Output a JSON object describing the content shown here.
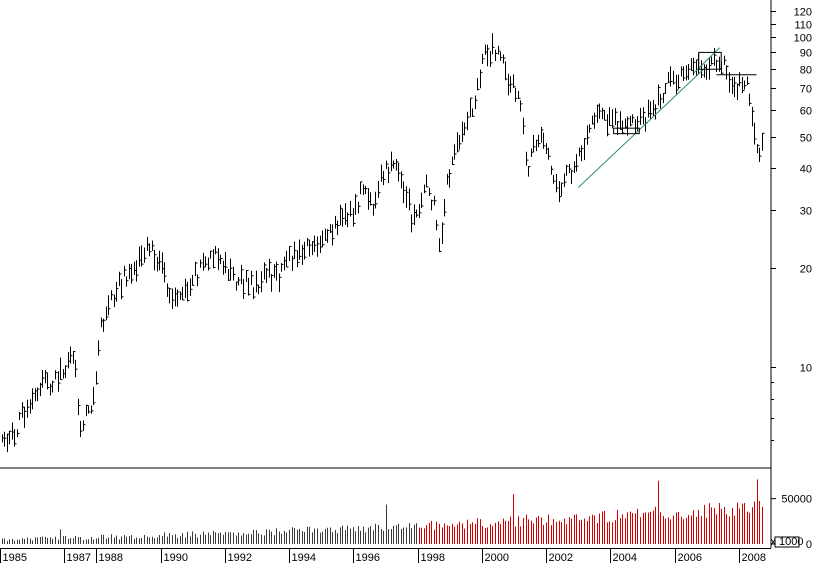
{
  "chart_data": [
    {
      "type": "ohlc",
      "scale": "log",
      "price_axis": {
        "side": "right",
        "ticks": [
          {
            "value": 10,
            "label": "10"
          },
          {
            "value": 20,
            "label": "20"
          },
          {
            "value": 30,
            "label": "30"
          },
          {
            "value": 40,
            "label": "40"
          },
          {
            "value": 50,
            "label": "50"
          },
          {
            "value": 60,
            "label": "60"
          },
          {
            "value": 70,
            "label": "70"
          },
          {
            "value": 80,
            "label": "80"
          },
          {
            "value": 90,
            "label": "90"
          },
          {
            "value": 100,
            "label": "100"
          },
          {
            "value": 110,
            "label": "110"
          },
          {
            "value": 120,
            "label": "120"
          }
        ],
        "range": [
          5,
          128
        ]
      },
      "x_axis": {
        "year_labels": [
          "1985",
          "1987",
          "1988",
          "1990",
          "1992",
          "1994",
          "1996",
          "1998",
          "2000",
          "2002",
          "2004",
          "2006",
          "2008"
        ],
        "range": [
          1985.0,
          2009.0
        ]
      },
      "price_anchors": [
        [
          1985.0,
          6.5
        ],
        [
          1985.4,
          6.0
        ],
        [
          1985.8,
          7.5
        ],
        [
          1986.2,
          8.8
        ],
        [
          1986.6,
          9.0
        ],
        [
          1987.0,
          9.8
        ],
        [
          1987.3,
          11.0
        ],
        [
          1987.5,
          6.5
        ],
        [
          1987.9,
          8.0
        ],
        [
          1988.1,
          13.0
        ],
        [
          1988.5,
          16.0
        ],
        [
          1988.8,
          18.5
        ],
        [
          1989.2,
          20.0
        ],
        [
          1989.6,
          23.0
        ],
        [
          1990.0,
          21.0
        ],
        [
          1990.4,
          15.5
        ],
        [
          1990.8,
          17.5
        ],
        [
          1991.2,
          19.5
        ],
        [
          1991.7,
          22.5
        ],
        [
          1992.1,
          19.5
        ],
        [
          1992.5,
          18.0
        ],
        [
          1992.9,
          17.5
        ],
        [
          1993.3,
          19.5
        ],
        [
          1993.7,
          18.5
        ],
        [
          1994.0,
          21.0
        ],
        [
          1994.4,
          23.0
        ],
        [
          1994.8,
          23.0
        ],
        [
          1995.2,
          25.0
        ],
        [
          1995.6,
          27.5
        ],
        [
          1996.0,
          30.0
        ],
        [
          1996.3,
          35.0
        ],
        [
          1996.6,
          31.0
        ],
        [
          1996.9,
          38.0
        ],
        [
          1997.3,
          42.0
        ],
        [
          1997.6,
          33.0
        ],
        [
          1997.9,
          27.0
        ],
        [
          1998.2,
          36.0
        ],
        [
          1998.5,
          32.0
        ],
        [
          1998.7,
          23.0
        ],
        [
          1998.9,
          35.0
        ],
        [
          1999.2,
          45.0
        ],
        [
          1999.5,
          55.0
        ],
        [
          1999.8,
          65.0
        ],
        [
          2000.0,
          88.0
        ],
        [
          2000.3,
          92.0
        ],
        [
          2000.6,
          85.0
        ],
        [
          2000.9,
          72.0
        ],
        [
          2001.2,
          62.0
        ],
        [
          2001.4,
          40.0
        ],
        [
          2001.6,
          48.0
        ],
        [
          2001.9,
          52.0
        ],
        [
          2002.1,
          42.0
        ],
        [
          2002.4,
          36.0
        ],
        [
          2002.7,
          38.0
        ],
        [
          2003.0,
          44.0
        ],
        [
          2003.3,
          52.0
        ],
        [
          2003.6,
          58.0
        ],
        [
          2003.9,
          56.0
        ],
        [
          2004.2,
          55.0
        ],
        [
          2004.5,
          52.0
        ],
        [
          2004.8,
          56.0
        ],
        [
          2005.1,
          58.0
        ],
        [
          2005.4,
          62.0
        ],
        [
          2005.7,
          70.0
        ],
        [
          2006.0,
          75.0
        ],
        [
          2006.3,
          80.0
        ],
        [
          2006.6,
          78.0
        ],
        [
          2006.9,
          83.0
        ],
        [
          2007.2,
          85.0
        ],
        [
          2007.5,
          82.0
        ],
        [
          2007.7,
          76.0
        ],
        [
          2007.9,
          70.0
        ],
        [
          2008.2,
          73.0
        ],
        [
          2008.4,
          60.0
        ],
        [
          2008.6,
          42.0
        ],
        [
          2008.8,
          48.0
        ],
        [
          2009.0,
          50.0
        ]
      ],
      "volume_panel": {
        "axis_labels": [
          {
            "value": 50000,
            "label": "50000"
          },
          {
            "value": 0,
            "label": "0"
          }
        ],
        "scale_note": "x 1000",
        "range": [
          0,
          75000
        ],
        "colors": {
          "early": "#3a3a3a",
          "late": "#d40000"
        }
      },
      "annotations": {
        "trendline": {
          "from": [
            2003.0,
            35.0
          ],
          "to": [
            2006.9,
            80.0
          ],
          "color": "#2e8b7a"
        },
        "upper_trendline": {
          "from": [
            2006.6,
            78.0
          ],
          "to": [
            2007.4,
            93.0
          ],
          "color": "#2e8b7a"
        },
        "resistance_box": {
          "x": [
            2006.75,
            2007.45
          ],
          "y": [
            80.0,
            90.0
          ]
        },
        "neckline": {
          "x": [
            2007.3,
            2008.55
          ],
          "y": 77.0
        },
        "support_box": {
          "x": [
            2004.1,
            2004.9
          ],
          "y": [
            51.0,
            53.0
          ]
        }
      }
    }
  ]
}
